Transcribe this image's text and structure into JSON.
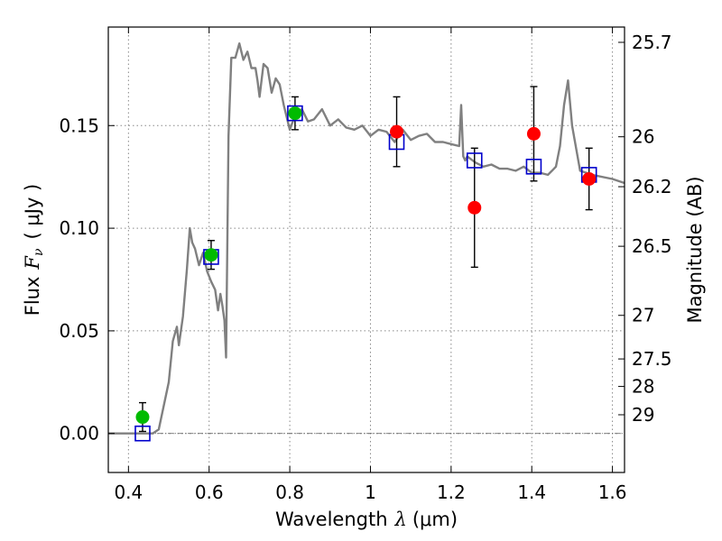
{
  "chart_data": {
    "type": "scatter",
    "xlabel": {
      "prefix": "Wavelength",
      "symbol": "λ",
      "unit": "(μm)"
    },
    "ylabel": {
      "prefix": "Flux",
      "symbol": "F",
      "subscript": "ν",
      "unit": "( μJy )"
    },
    "y2label": "Magnitude (AB)",
    "xlim": [
      0.35,
      1.63
    ],
    "ylim": [
      -0.019,
      0.198
    ],
    "x_ticks": [
      0.4,
      0.6,
      0.8,
      1.0,
      1.2,
      1.4,
      1.6
    ],
    "x_tick_labels": [
      "0.4",
      "0.6",
      "0.8",
      "1",
      "1.2",
      "1.4",
      "1.6"
    ],
    "y_ticks": [
      0.0,
      0.05,
      0.1,
      0.15
    ],
    "y_tick_labels": [
      "0.00",
      "0.05",
      "0.10",
      "0.15"
    ],
    "mag_ticks": [
      25.7,
      26,
      26.2,
      26.5,
      27,
      27.5,
      28,
      29
    ],
    "mag_tick_labels": [
      "25.7",
      "26",
      "26.2",
      "26.5",
      "27",
      "27.5",
      "28",
      "29"
    ],
    "grid": true,
    "zero_line": true,
    "colors": {
      "sed": "#808080",
      "model": "#0000cc",
      "optical": "#00bb00",
      "infrared": "#ff0000",
      "errorbar": "#000000",
      "grid": "#888888"
    },
    "sed_model": {
      "x": [
        0.35,
        0.46,
        0.475,
        0.5,
        0.51,
        0.52,
        0.525,
        0.535,
        0.545,
        0.552,
        0.558,
        0.565,
        0.575,
        0.585,
        0.595,
        0.605,
        0.615,
        0.622,
        0.628,
        0.633,
        0.638,
        0.642,
        0.648,
        0.655,
        0.665,
        0.675,
        0.685,
        0.695,
        0.705,
        0.715,
        0.72,
        0.725,
        0.735,
        0.745,
        0.755,
        0.765,
        0.775,
        0.785,
        0.8,
        0.815,
        0.83,
        0.845,
        0.86,
        0.88,
        0.9,
        0.92,
        0.94,
        0.96,
        0.98,
        1.0,
        1.02,
        1.04,
        1.06,
        1.08,
        1.1,
        1.12,
        1.14,
        1.16,
        1.18,
        1.2,
        1.22,
        1.225,
        1.23,
        1.235,
        1.24,
        1.26,
        1.28,
        1.3,
        1.32,
        1.34,
        1.36,
        1.38,
        1.4,
        1.42,
        1.44,
        1.45,
        1.46,
        1.47,
        1.48,
        1.49,
        1.5,
        1.52,
        1.55,
        1.6,
        1.63
      ],
      "y": [
        0.0,
        0.0,
        0.002,
        0.025,
        0.045,
        0.052,
        0.043,
        0.057,
        0.08,
        0.1,
        0.093,
        0.09,
        0.082,
        0.088,
        0.079,
        0.074,
        0.07,
        0.06,
        0.068,
        0.062,
        0.055,
        0.037,
        0.145,
        0.183,
        0.183,
        0.19,
        0.182,
        0.186,
        0.178,
        0.178,
        0.172,
        0.164,
        0.18,
        0.178,
        0.166,
        0.173,
        0.17,
        0.16,
        0.148,
        0.156,
        0.158,
        0.152,
        0.153,
        0.158,
        0.15,
        0.153,
        0.149,
        0.148,
        0.15,
        0.145,
        0.148,
        0.147,
        0.142,
        0.148,
        0.143,
        0.145,
        0.146,
        0.142,
        0.142,
        0.141,
        0.14,
        0.16,
        0.135,
        0.133,
        0.135,
        0.132,
        0.13,
        0.131,
        0.129,
        0.129,
        0.128,
        0.13,
        0.127,
        0.127,
        0.126,
        0.128,
        0.13,
        0.14,
        0.16,
        0.172,
        0.15,
        0.128,
        0.126,
        0.124,
        0.122
      ]
    },
    "model_photometry": [
      {
        "x": 0.435,
        "y": 0.0
      },
      {
        "x": 0.605,
        "y": 0.086
      },
      {
        "x": 0.813,
        "y": 0.156
      },
      {
        "x": 1.065,
        "y": 0.142
      },
      {
        "x": 1.258,
        "y": 0.133
      },
      {
        "x": 1.405,
        "y": 0.13
      },
      {
        "x": 1.542,
        "y": 0.126
      }
    ],
    "observed_optical": [
      {
        "x": 0.435,
        "y": 0.008,
        "err": 0.007
      },
      {
        "x": 0.605,
        "y": 0.087,
        "err": 0.007
      },
      {
        "x": 0.813,
        "y": 0.156,
        "err": 0.008
      }
    ],
    "observed_infrared": [
      {
        "x": 1.065,
        "y": 0.147,
        "err": 0.017
      },
      {
        "x": 1.258,
        "y": 0.11,
        "err": 0.029
      },
      {
        "x": 1.405,
        "y": 0.146,
        "err": 0.023
      },
      {
        "x": 1.542,
        "y": 0.124,
        "err": 0.015
      }
    ]
  }
}
